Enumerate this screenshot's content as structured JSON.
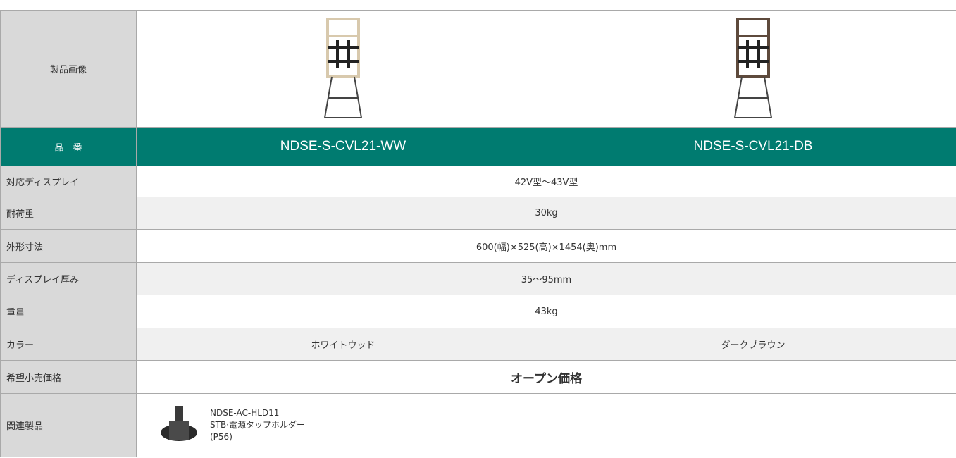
{
  "table": {
    "image_label": "製品画像",
    "model_label": "品　番",
    "models": [
      "NDSE-S-CVL21-WW",
      "NDSE-S-CVL21-DB"
    ],
    "rows": [
      {
        "label": "対応ディスプレイ",
        "cells": [
          "42V型〜43V型"
        ]
      },
      {
        "label": "耐荷重",
        "cells": [
          "30kg"
        ]
      },
      {
        "label": "外形寸法",
        "cells": [
          "600(幅)×525(高)×1454(奥)mm"
        ]
      },
      {
        "label": "ディスプレイ厚み",
        "cells": [
          "35〜95mm"
        ]
      },
      {
        "label": "重量",
        "cells": [
          "43kg"
        ]
      },
      {
        "label": "カラー",
        "cells": [
          "ホワイトウッド",
          "ダークブラウン"
        ]
      },
      {
        "label": "希望小売価格",
        "cells": [
          "オープン価格"
        ]
      }
    ],
    "related": {
      "label": "関連製品",
      "lines": [
        "NDSE-AC-HLD11",
        "STB·電源タップホルダー",
        "(P56)"
      ]
    }
  }
}
